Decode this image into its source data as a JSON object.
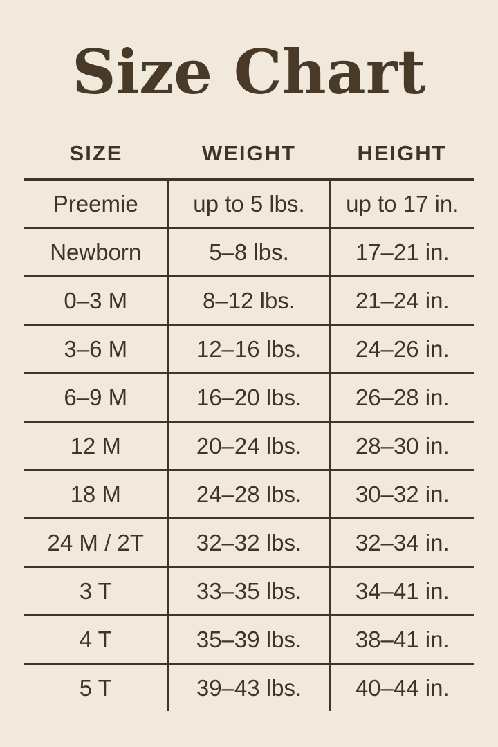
{
  "page": {
    "background_color": "#f2e9dd",
    "ink_color": "#3e342a",
    "title_color": "#493a28"
  },
  "title": "Size Chart",
  "table": {
    "headers": [
      "SIZE",
      "WEIGHT",
      "HEIGHT"
    ],
    "rows": [
      {
        "size": "Preemie",
        "weight": "up to 5 lbs.",
        "height": "up to 17 in."
      },
      {
        "size": "Newborn",
        "weight": "5–8 lbs.",
        "height": "17–21 in."
      },
      {
        "size": "0–3 M",
        "weight": "8–12 lbs.",
        "height": "21–24 in."
      },
      {
        "size": "3–6 M",
        "weight": "12–16 lbs.",
        "height": "24–26 in."
      },
      {
        "size": "6–9 M",
        "weight": "16–20 lbs.",
        "height": "26–28 in."
      },
      {
        "size": "12 M",
        "weight": "20–24 lbs.",
        "height": "28–30 in."
      },
      {
        "size": "18 M",
        "weight": "24–28 lbs.",
        "height": "30–32 in."
      },
      {
        "size": "24 M / 2T",
        "weight": "32–32 lbs.",
        "height": "32–34 in."
      },
      {
        "size": "3 T",
        "weight": "33–35 lbs.",
        "height": "34–41 in."
      },
      {
        "size": "4 T",
        "weight": "35–39 lbs.",
        "height": "38–41 in."
      },
      {
        "size": "5 T",
        "weight": "39–43 lbs.",
        "height": "40–44 in."
      }
    ]
  },
  "chart_data": {
    "type": "table",
    "title": "Size Chart",
    "columns": [
      "SIZE",
      "WEIGHT",
      "HEIGHT"
    ],
    "rows": [
      [
        "Preemie",
        "up to 5 lbs.",
        "up to 17 in."
      ],
      [
        "Newborn",
        "5–8 lbs.",
        "17–21 in."
      ],
      [
        "0–3 M",
        "8–12 lbs.",
        "21–24 in."
      ],
      [
        "3–6 M",
        "12–16 lbs.",
        "24–26 in."
      ],
      [
        "6–9 M",
        "16–20 lbs.",
        "26–28 in."
      ],
      [
        "12 M",
        "20–24 lbs.",
        "28–30 in."
      ],
      [
        "18 M",
        "24–28 lbs.",
        "30–32 in."
      ],
      [
        "24 M / 2T",
        "32–32 lbs.",
        "32–34 in."
      ],
      [
        "3 T",
        "33–35 lbs.",
        "34–41 in."
      ],
      [
        "4 T",
        "35–39 lbs.",
        "38–41 in."
      ],
      [
        "5 T",
        "39–43 lbs.",
        "40–44 in."
      ]
    ],
    "layout": {
      "grid": "horizontal rules between all rows; vertical rules flanking middle column only; no outer border; no bottom rule on last row",
      "header_style": "bold uppercase sans, no vertical separators in header row"
    }
  }
}
